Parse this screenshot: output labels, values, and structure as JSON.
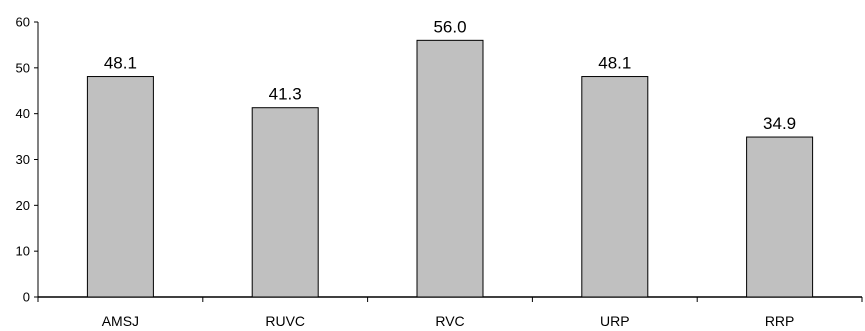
{
  "chart_data": {
    "type": "bar",
    "categories": [
      "AMSJ",
      "RUVC",
      "RVC",
      "URP",
      "RRP"
    ],
    "values": [
      48.1,
      41.3,
      56.0,
      48.1,
      34.9
    ],
    "data_labels": [
      "48.1",
      "41.3",
      "56.0",
      "48.1",
      "34.9"
    ],
    "ylim": [
      0,
      60
    ],
    "yticks": [
      0,
      10,
      20,
      30,
      40,
      50,
      60
    ],
    "grid": false,
    "legend": "none",
    "title": "",
    "xlabel": "",
    "ylabel": ""
  },
  "colors": {
    "bar_fill": "#c0c0c0",
    "bar_stroke": "#000000",
    "axis": "#000000",
    "text": "#000000"
  }
}
